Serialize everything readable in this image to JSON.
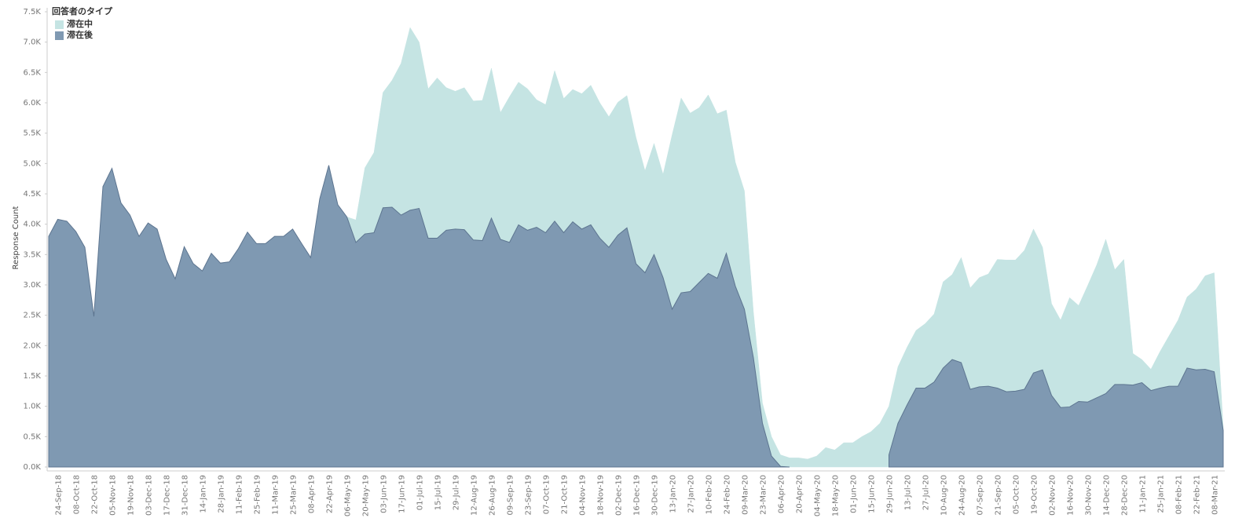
{
  "chart_data": {
    "type": "area",
    "ylabel": "Response Count",
    "legend_title": "回答者のタイプ",
    "legend": "top-left",
    "categories": [
      null,
      "24-Sep-18",
      null,
      "08-Oct-18",
      null,
      "22-Oct-18",
      null,
      "05-Nov-18",
      null,
      "19-Nov-18",
      null,
      "03-Dec-18",
      null,
      "17-Dec-18",
      null,
      "31-Dec-18",
      null,
      "14-Jan-19",
      null,
      "28-Jan-19",
      null,
      "11-Feb-19",
      null,
      "25-Feb-19",
      null,
      "11-Mar-19",
      null,
      "25-Mar-19",
      null,
      "08-Apr-19",
      null,
      "22-Apr-19",
      null,
      "06-May-19",
      null,
      "20-May-19",
      null,
      "03-Jun-19",
      null,
      "17-Jun-19",
      null,
      "01-Jul-19",
      null,
      "15-Jul-19",
      null,
      "29-Jul-19",
      null,
      "12-Aug-19",
      null,
      "26-Aug-19",
      null,
      "09-Sep-19",
      null,
      "23-Sep-19",
      null,
      "07-Oct-19",
      null,
      "21-Oct-19",
      null,
      "04-Nov-19",
      null,
      "18-Nov-19",
      null,
      "02-Dec-19",
      null,
      "16-Dec-19",
      null,
      "30-Dec-19",
      null,
      "13-Jan-20",
      null,
      "27-Jan-20",
      null,
      "10-Feb-20",
      null,
      "24-Feb-20",
      null,
      "09-Mar-20",
      null,
      "23-Mar-20",
      null,
      "06-Apr-20",
      null,
      "20-Apr-20",
      null,
      "04-May-20",
      null,
      "18-May-20",
      null,
      "01-Jun-20",
      null,
      "15-Jun-20",
      null,
      "29-Jun-20",
      null,
      "13-Jul-20",
      null,
      "27-Jul-20",
      null,
      "10-Aug-20",
      null,
      "24-Aug-20",
      null,
      "07-Sep-20",
      null,
      "21-Sep-20",
      null,
      "05-Oct-20",
      null,
      "19-Oct-20",
      null,
      "02-Nov-20",
      null,
      "16-Nov-20",
      null,
      "30-Nov-20",
      null,
      "14-Dec-20",
      null,
      "28-Dec-20",
      null,
      "11-Jan-21",
      null,
      "25-Jan-21",
      null,
      "08-Feb-21",
      null,
      "22-Feb-21",
      null,
      "08-Mar-21",
      null
    ],
    "series": [
      {
        "name": "滞在中",
        "color": "#c5e4e3",
        "values": [
          null,
          null,
          null,
          null,
          null,
          null,
          null,
          null,
          null,
          null,
          null,
          null,
          null,
          null,
          null,
          null,
          null,
          null,
          null,
          null,
          null,
          null,
          null,
          null,
          null,
          null,
          null,
          null,
          null,
          null,
          null,
          null,
          null,
          4120,
          4070,
          4930,
          5180,
          6170,
          6370,
          6650,
          7240,
          7000,
          6230,
          6410,
          6250,
          6190,
          6250,
          6030,
          6040,
          6570,
          5840,
          6100,
          6340,
          6230,
          6050,
          5970,
          6530,
          6070,
          6220,
          6150,
          6290,
          6000,
          5770,
          6010,
          6120,
          5430,
          4880,
          5330,
          4820,
          5470,
          6080,
          5830,
          5920,
          6130,
          5820,
          5880,
          5020,
          4550,
          2550,
          1050,
          500,
          200,
          150,
          150,
          130,
          180,
          320,
          280,
          400,
          400,
          500,
          580,
          720,
          1000,
          1650,
          1970,
          2250,
          2360,
          2520,
          3050,
          3170,
          3450,
          2950,
          3120,
          3180,
          3420,
          3410,
          3410,
          3570,
          3920,
          3620,
          2690,
          2420,
          2790,
          2660,
          2990,
          3330,
          3750,
          3250,
          3420,
          1870,
          1770,
          1610,
          1900,
          2160,
          2420,
          2800,
          2930,
          3150,
          3200,
          650
        ]
      },
      {
        "name": "滞在後",
        "color": "#7f99b2",
        "values": [
          3800,
          4080,
          4050,
          3880,
          3620,
          2480,
          4620,
          4920,
          4350,
          4150,
          3800,
          4020,
          3920,
          3420,
          3100,
          3630,
          3350,
          3230,
          3520,
          3360,
          3380,
          3600,
          3870,
          3680,
          3680,
          3800,
          3800,
          3920,
          3680,
          3450,
          4420,
          4970,
          4320,
          4120,
          3700,
          3840,
          3860,
          4270,
          4280,
          4150,
          4230,
          4260,
          3770,
          3770,
          3900,
          3920,
          3910,
          3740,
          3730,
          4100,
          3750,
          3700,
          3990,
          3900,
          3950,
          3860,
          4050,
          3860,
          4040,
          3920,
          3990,
          3770,
          3620,
          3820,
          3940,
          3350,
          3200,
          3500,
          3120,
          2600,
          2870,
          2890,
          3040,
          3190,
          3110,
          3520,
          2980,
          2600,
          1800,
          720,
          180,
          10,
          0,
          null,
          null,
          null,
          null,
          null,
          null,
          null,
          null,
          null,
          null,
          200,
          720,
          1020,
          1300,
          1300,
          1400,
          1630,
          1770,
          1720,
          1280,
          1320,
          1330,
          1300,
          1240,
          1250,
          1280,
          1550,
          1600,
          1180,
          980,
          990,
          1080,
          1070,
          1140,
          1210,
          1360,
          1360,
          1350,
          1390,
          1260,
          1300,
          1330,
          1330,
          1630,
          1600,
          1610,
          1570,
          600
        ]
      }
    ],
    "ylim": [
      0,
      7500
    ],
    "yticks": [
      {
        "value": 0,
        "label": "0.0K"
      },
      {
        "value": 500,
        "label": "0.5K"
      },
      {
        "value": 1000,
        "label": "1.0K"
      },
      {
        "value": 1500,
        "label": "1.5K"
      },
      {
        "value": 2000,
        "label": "2.0K"
      },
      {
        "value": 2500,
        "label": "2.5K"
      },
      {
        "value": 3000,
        "label": "3.0K"
      },
      {
        "value": 3500,
        "label": "3.5K"
      },
      {
        "value": 4000,
        "label": "4.0K"
      },
      {
        "value": 4500,
        "label": "4.5K"
      },
      {
        "value": 5000,
        "label": "5.0K"
      },
      {
        "value": 5500,
        "label": "5.5K"
      },
      {
        "value": 6000,
        "label": "6.0K"
      },
      {
        "value": 6500,
        "label": "6.5K"
      },
      {
        "value": 7000,
        "label": "7.0K"
      },
      {
        "value": 7500,
        "label": "7.5K"
      }
    ],
    "grid": false
  }
}
